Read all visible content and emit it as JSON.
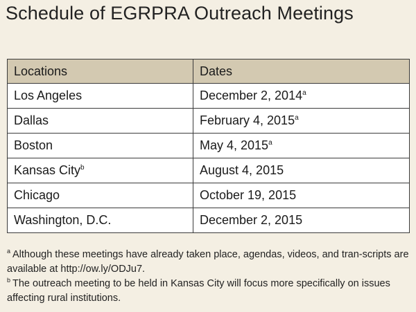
{
  "title": "Schedule of EGRPRA Outreach Meetings",
  "table": {
    "headers": [
      "Locations",
      "Dates"
    ],
    "rows": [
      {
        "location": "Los Angeles",
        "location_note": "",
        "date": "December 2, 2014",
        "date_note": "a"
      },
      {
        "location": "Dallas",
        "location_note": "",
        "date": "February 4, 2015",
        "date_note": "a"
      },
      {
        "location": "Boston",
        "location_note": "",
        "date": "May 4, 2015",
        "date_note": "a"
      },
      {
        "location": "Kansas City",
        "location_note": "b",
        "date": "August 4, 2015",
        "date_note": ""
      },
      {
        "location": "Chicago",
        "location_note": "",
        "date": "October 19, 2015",
        "date_note": ""
      },
      {
        "location": "Washington, D.C.",
        "location_note": "",
        "date": "December 2, 2015",
        "date_note": ""
      }
    ]
  },
  "footnotes": [
    {
      "mark": "a",
      "text": "Although these meetings have already taken place, agendas, videos, and tran-scripts are available at http://ow.ly/ODJu7."
    },
    {
      "mark": "b",
      "text": "The outreach meeting to be held in Kansas City will focus more specifically on issues affecting rural institutions."
    }
  ],
  "colors": {
    "background": "#f4efe3",
    "header_fill": "#d3c9b1",
    "border": "#3a3a3a"
  }
}
